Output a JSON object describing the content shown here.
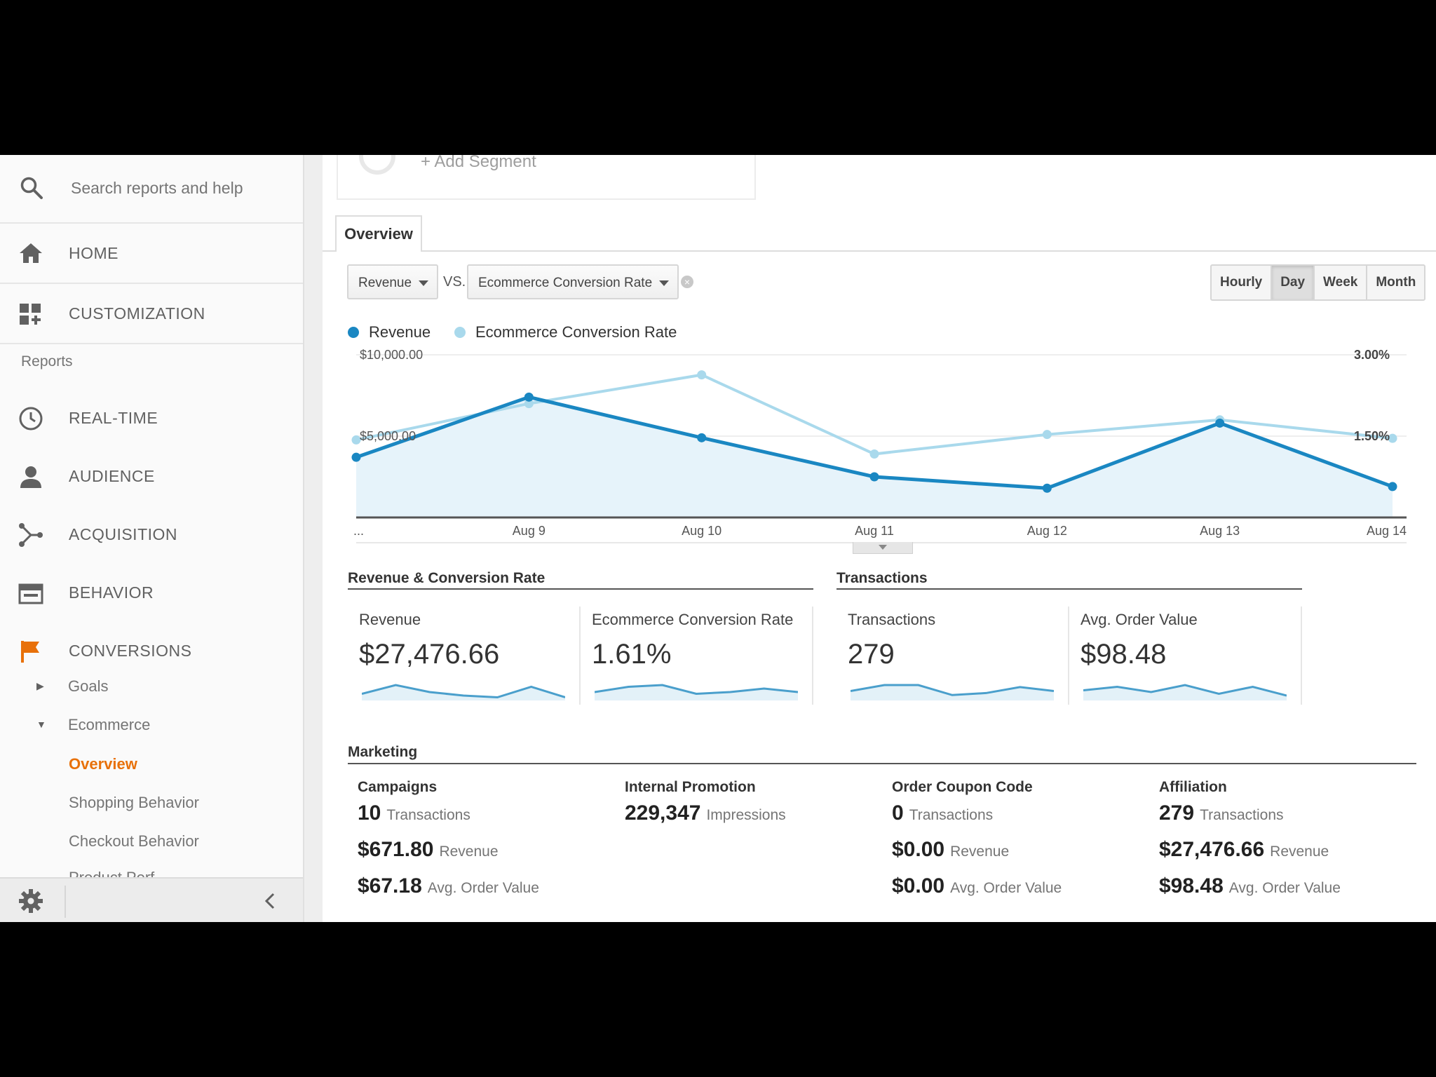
{
  "sidebar": {
    "search_placeholder": "Search reports and help",
    "home": "HOME",
    "customization": "CUSTOMIZATION",
    "reports_label": "Reports",
    "realtime": "REAL-TIME",
    "audience": "AUDIENCE",
    "acquisition": "ACQUISITION",
    "behavior": "BEHAVIOR",
    "conversions": "CONVERSIONS",
    "goals": "Goals",
    "ecommerce": "Ecommerce",
    "overview": "Overview",
    "shopping_behavior": "Shopping Behavior",
    "checkout_behavior": "Checkout Behavior",
    "product_performance_partial": "Product Perf"
  },
  "segment": {
    "add_label": "+ Add Segment"
  },
  "tabs": {
    "overview": "Overview"
  },
  "controls": {
    "metric1": "Revenue",
    "vs": "VS.",
    "metric2": "Ecommerce Conversion Rate",
    "time_buttons": [
      "Hourly",
      "Day",
      "Week",
      "Month"
    ],
    "active_time": "Day"
  },
  "colors": {
    "revenue": "#1a87c2",
    "conversion": "#a9d9ec",
    "accent_orange": "#e8710a"
  },
  "chart_data": {
    "type": "line",
    "x": [
      "...",
      "Aug 9",
      "Aug 10",
      "Aug 11",
      "Aug 12",
      "Aug 13",
      "Aug 14"
    ],
    "series": [
      {
        "name": "Revenue",
        "axis": "left",
        "values": [
          3700,
          7400,
          4900,
          2500,
          1800,
          5800,
          1900
        ]
      },
      {
        "name": "Ecommerce Conversion Rate",
        "axis": "right",
        "values": [
          1.43,
          2.1,
          2.63,
          1.17,
          1.53,
          1.8,
          1.46
        ]
      }
    ],
    "y_left_ticks": [
      "$10,000.00",
      "$5,000.00"
    ],
    "y_right_ticks": [
      "3.00%",
      "1.50%"
    ],
    "ylim_left": [
      0,
      10000
    ],
    "ylim_right": [
      0,
      3
    ],
    "legend": "top-left"
  },
  "revenue_section": {
    "title": "Revenue & Conversion Rate",
    "cards": [
      {
        "label": "Revenue",
        "value": "$27,476.66",
        "spark": [
          3,
          8,
          4,
          2,
          1,
          7,
          1
        ]
      },
      {
        "label": "Ecommerce Conversion Rate",
        "value": "1.61%",
        "spark": [
          4,
          7,
          8,
          3,
          4,
          6,
          4
        ]
      }
    ]
  },
  "transactions_section": {
    "title": "Transactions",
    "cards": [
      {
        "label": "Transactions",
        "value": "279",
        "spark": [
          4,
          7,
          7,
          2,
          3,
          6,
          4
        ]
      },
      {
        "label": "Avg. Order Value",
        "value": "$98.48",
        "spark": [
          5,
          7,
          4,
          8,
          3,
          7,
          2
        ]
      }
    ]
  },
  "marketing": {
    "title": "Marketing",
    "columns": [
      {
        "head": "Campaigns",
        "rows": [
          {
            "num": "10",
            "unit": "Transactions"
          },
          {
            "num": "$671.80",
            "unit": "Revenue"
          },
          {
            "num": "$67.18",
            "unit": "Avg. Order Value"
          }
        ]
      },
      {
        "head": "Internal Promotion",
        "rows": [
          {
            "num": "229,347",
            "unit": "Impressions"
          }
        ]
      },
      {
        "head": "Order Coupon Code",
        "rows": [
          {
            "num": "0",
            "unit": "Transactions"
          },
          {
            "num": "$0.00",
            "unit": "Revenue"
          },
          {
            "num": "$0.00",
            "unit": "Avg. Order Value"
          }
        ]
      },
      {
        "head": "Affiliation",
        "rows": [
          {
            "num": "279",
            "unit": "Transactions"
          },
          {
            "num": "$27,476.66",
            "unit": "Revenue"
          },
          {
            "num": "$98.48",
            "unit": "Avg. Order Value"
          }
        ]
      }
    ]
  }
}
